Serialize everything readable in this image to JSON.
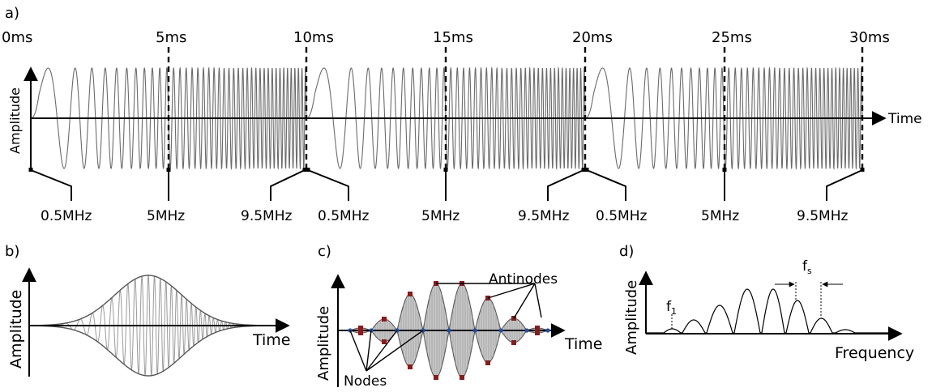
{
  "panel_labels": {
    "a": "a)",
    "b": "b)",
    "c": "c)",
    "d": "d)"
  },
  "panel_a": {
    "time_ticks": [
      "0ms",
      "5ms",
      "10ms",
      "15ms",
      "20ms",
      "25ms",
      "30ms"
    ],
    "y_label": "Amplitude",
    "x_label": "Time",
    "freq_labels": [
      "0.5MHz",
      "5MHz",
      "9.5MHz",
      "0.5MHz",
      "5MHz",
      "9.5MHz",
      "0.5MHz",
      "5MHz",
      "9.5MHz"
    ]
  },
  "panel_b": {
    "y_label": "Amplitude",
    "x_label": "Time"
  },
  "panel_c": {
    "y_label": "Amplitude",
    "x_label": "Time",
    "antinodes_label": "Antinodes",
    "nodes_label": "Nodes"
  },
  "panel_d": {
    "y_label": "Amplitude",
    "x_label": "Frequency",
    "f1_label": "f",
    "f1_sub": "1",
    "fs_label": "f",
    "fs_sub": "s"
  },
  "colors": {
    "wave": "#6b6b6b",
    "axis": "#000000",
    "antinode_marker": "#8b1a1a",
    "node_marker": "#1f4fa8",
    "fill": "#c8c8c8"
  }
}
